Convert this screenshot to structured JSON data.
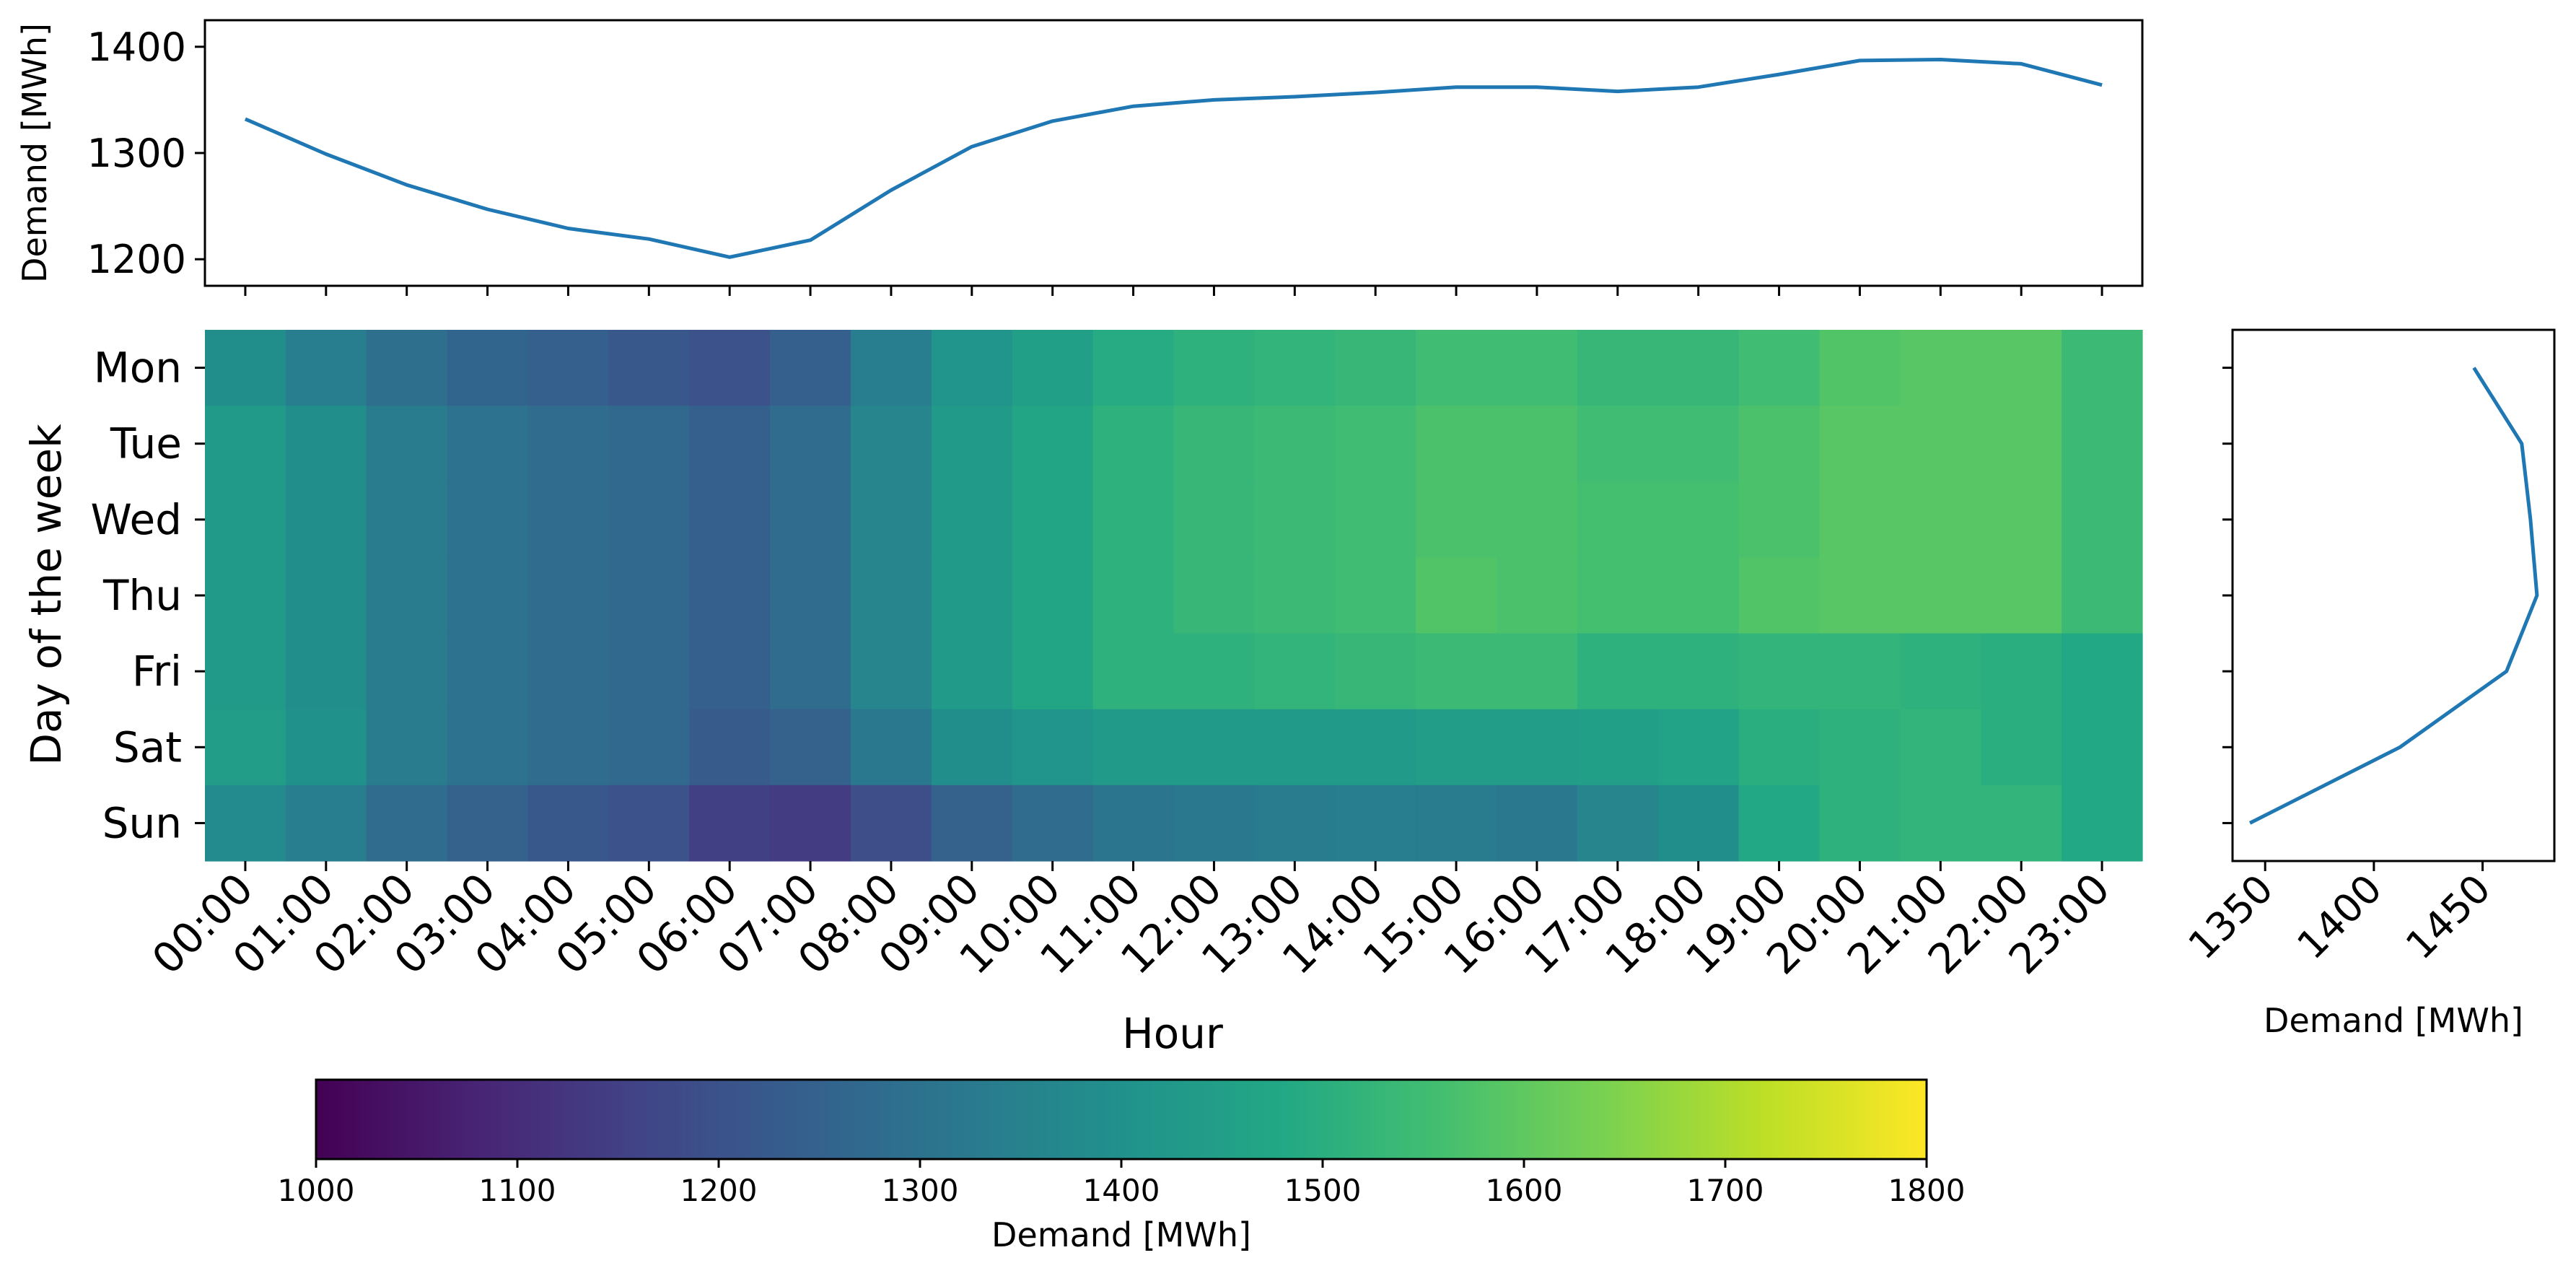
{
  "chart_data": [
    {
      "type": "line",
      "title": "",
      "xlabel": "",
      "ylabel": "Demand [MWh]",
      "x": [
        "00:00",
        "01:00",
        "02:00",
        "03:00",
        "04:00",
        "05:00",
        "06:00",
        "07:00",
        "08:00",
        "09:00",
        "10:00",
        "11:00",
        "12:00",
        "13:00",
        "14:00",
        "15:00",
        "16:00",
        "17:00",
        "18:00",
        "19:00",
        "20:00",
        "21:00",
        "22:00",
        "23:00"
      ],
      "values": [
        1332,
        1299,
        1270,
        1247,
        1229,
        1219,
        1202,
        1218,
        1265,
        1306,
        1330,
        1344,
        1350,
        1353,
        1357,
        1362,
        1362,
        1358,
        1362,
        1374,
        1387,
        1388,
        1384,
        1364
      ],
      "ylim": [
        1175,
        1425
      ],
      "yticks": [
        1200,
        1300,
        1400
      ],
      "grid": false
    },
    {
      "type": "heatmap",
      "xlabel": "Hour",
      "ylabel": "Day of the week",
      "x": [
        "00:00",
        "01:00",
        "02:00",
        "03:00",
        "04:00",
        "05:00",
        "06:00",
        "07:00",
        "08:00",
        "09:00",
        "10:00",
        "11:00",
        "12:00",
        "13:00",
        "14:00",
        "15:00",
        "16:00",
        "17:00",
        "18:00",
        "19:00",
        "20:00",
        "21:00",
        "22:00",
        "23:00"
      ],
      "y": [
        "Mon",
        "Tue",
        "Wed",
        "Thu",
        "Fri",
        "Sat",
        "Sun"
      ],
      "values": [
        [
          1390,
          1340,
          1290,
          1260,
          1240,
          1220,
          1200,
          1240,
          1340,
          1410,
          1450,
          1490,
          1510,
          1520,
          1530,
          1550,
          1550,
          1530,
          1530,
          1550,
          1580,
          1590,
          1590,
          1540
        ],
        [
          1430,
          1390,
          1330,
          1300,
          1280,
          1270,
          1240,
          1280,
          1360,
          1430,
          1470,
          1510,
          1530,
          1540,
          1550,
          1570,
          1570,
          1550,
          1550,
          1570,
          1590,
          1590,
          1590,
          1540
        ],
        [
          1430,
          1390,
          1330,
          1300,
          1280,
          1270,
          1240,
          1280,
          1360,
          1430,
          1470,
          1510,
          1530,
          1540,
          1550,
          1570,
          1570,
          1560,
          1560,
          1570,
          1590,
          1590,
          1590,
          1540
        ],
        [
          1430,
          1390,
          1330,
          1300,
          1280,
          1270,
          1240,
          1280,
          1360,
          1430,
          1470,
          1510,
          1530,
          1540,
          1550,
          1580,
          1570,
          1560,
          1560,
          1580,
          1590,
          1590,
          1590,
          1540
        ],
        [
          1430,
          1390,
          1330,
          1300,
          1280,
          1270,
          1240,
          1280,
          1360,
          1430,
          1470,
          1510,
          1510,
          1520,
          1530,
          1540,
          1540,
          1510,
          1510,
          1520,
          1520,
          1510,
          1500,
          1480
        ],
        [
          1440,
          1400,
          1330,
          1300,
          1280,
          1270,
          1230,
          1250,
          1320,
          1390,
          1410,
          1430,
          1430,
          1430,
          1430,
          1440,
          1440,
          1450,
          1460,
          1500,
          1510,
          1520,
          1500,
          1480
        ],
        [
          1380,
          1340,
          1280,
          1250,
          1220,
          1200,
          1150,
          1140,
          1190,
          1250,
          1280,
          1310,
          1320,
          1330,
          1340,
          1330,
          1320,
          1360,
          1390,
          1480,
          1510,
          1520,
          1520,
          1480
        ]
      ],
      "colorbar": {
        "label": "Demand [MWh]",
        "range": [
          1000,
          1800
        ],
        "ticks": [
          1000,
          1100,
          1200,
          1300,
          1400,
          1500,
          1600,
          1700,
          1800
        ],
        "colormap": "viridis"
      }
    },
    {
      "type": "line",
      "orientation": "horizontal",
      "xlabel": "Demand [MWh]",
      "ylabel": "",
      "y": [
        "Mon",
        "Tue",
        "Wed",
        "Thu",
        "Fri",
        "Sat",
        "Sun"
      ],
      "values": [
        1446,
        1468,
        1472,
        1475,
        1461,
        1412,
        1343
      ],
      "xlim": [
        1335,
        1483
      ],
      "xticks": [
        1350,
        1400,
        1450
      ]
    }
  ],
  "colors": {
    "line": "#1f77b4",
    "axes": "#000000",
    "background": "#ffffff"
  }
}
